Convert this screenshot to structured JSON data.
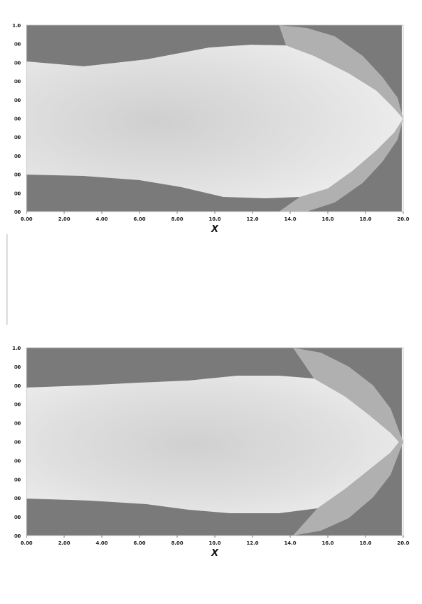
{
  "chart_data": [
    {
      "type": "heatmap",
      "title": "",
      "xlabel": "X",
      "ylabel": "",
      "xlim": [
        0,
        20
      ],
      "x_ticks": [
        "0.00",
        "2.00",
        "4.00",
        "6.00",
        "8.00",
        "10.0",
        "12.0",
        "14.0",
        "16.0",
        "18.0",
        "20.0"
      ],
      "y_ticks": [
        "1.0",
        "00",
        "00",
        "00",
        "00",
        "00",
        "00",
        "00",
        "00",
        "00",
        "00"
      ],
      "colors": {
        "background": "#7a7a7a",
        "fill_light": "#e8e8e8",
        "fill_mid": "#d2d2d2",
        "edge": "#b0b0b0"
      },
      "grid": false
    },
    {
      "type": "heatmap",
      "title": "",
      "xlabel": "X",
      "ylabel": "",
      "xlim": [
        0,
        20
      ],
      "x_ticks": [
        "0.00",
        "2.00",
        "4.00",
        "6.00",
        "8.00",
        "10.0",
        "12.0",
        "14.0",
        "16.0",
        "18.0",
        "20.0"
      ],
      "y_ticks": [
        "1.0",
        "00",
        "00",
        "00",
        "00",
        "00",
        "00",
        "00",
        "00",
        "00",
        "00"
      ],
      "colors": {
        "background": "#7a7a7a",
        "fill_light": "#e8e8e8",
        "fill_mid": "#d2d2d2",
        "edge": "#b0b0b0"
      },
      "grid": false
    }
  ]
}
